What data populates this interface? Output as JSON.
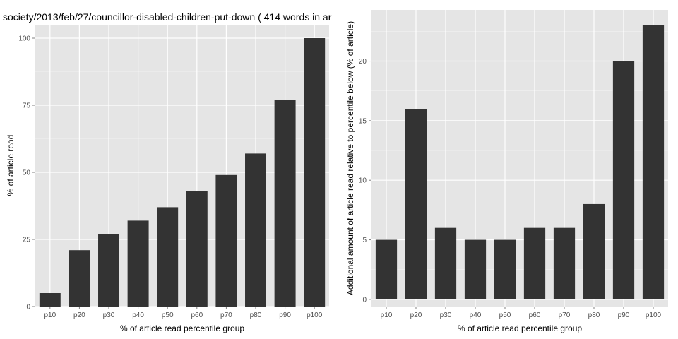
{
  "chart_data": [
    {
      "type": "bar",
      "title": "society/2013/feb/27/councillor-disabled-children-put-down ( 414 words in ar",
      "xlabel": "% of article read percentile group",
      "ylabel": "% of article read",
      "categories": [
        "p10",
        "p20",
        "p30",
        "p40",
        "p50",
        "p60",
        "p70",
        "p80",
        "p90",
        "p100"
      ],
      "values": [
        5,
        21,
        27,
        32,
        37,
        43,
        49,
        57,
        77,
        100
      ],
      "ylim": [
        0,
        105
      ],
      "yticks": [
        "0",
        "25",
        "50",
        "75",
        "100"
      ],
      "grid": true,
      "bar_color": "#333333",
      "panel_color": "#e5e5e5",
      "grid_color": "#ffffff"
    },
    {
      "type": "bar",
      "title": "",
      "xlabel": "% of article read percentile group",
      "ylabel": "Additional amount of article read relative to percentile below (% of article)",
      "categories": [
        "p10",
        "p20",
        "p30",
        "p40",
        "p50",
        "p60",
        "p70",
        "p80",
        "p90",
        "p100"
      ],
      "values": [
        5,
        16,
        6,
        5,
        5,
        6,
        6,
        8,
        20,
        23
      ],
      "ylim": [
        -0.6,
        24.3
      ],
      "yticks": [
        "0",
        "5",
        "10",
        "15",
        "20"
      ],
      "grid": true,
      "bar_color": "#333333",
      "panel_color": "#e5e5e5",
      "grid_color": "#ffffff"
    }
  ]
}
